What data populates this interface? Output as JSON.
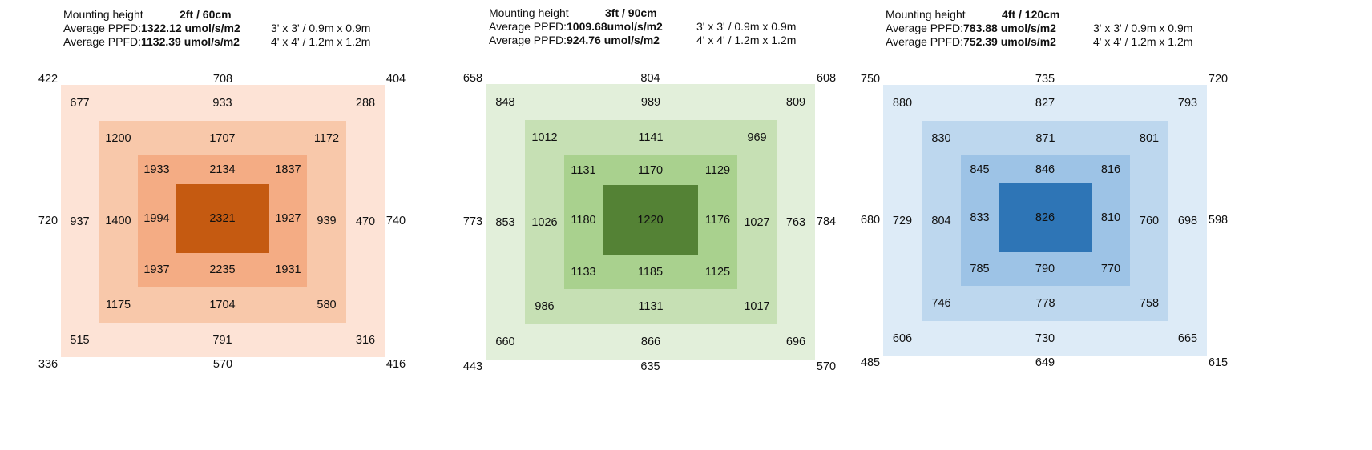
{
  "panels": [
    {
      "mounting_label": "Mounting height",
      "height": "2ft / 60cm",
      "ppfd_label": "Average PPFD:",
      "ppfd_3": "1322.12 umol/s/m2",
      "size_3": "3' x 3' / 0.9m x 0.9m",
      "ppfd_4": "1132.39 umol/s/m2",
      "size_4": "4' x 4' / 1.2m x 1.2m",
      "colors": [
        "#fde3d6",
        "#f8c8aa",
        "#f4ac84",
        "#c55a11"
      ],
      "rings": [
        [
          "422",
          "708",
          "404",
          "720",
          "740",
          "336",
          "570",
          "416"
        ],
        [
          "677",
          "933",
          "288",
          "937",
          "470",
          "515",
          "791",
          "316"
        ],
        [
          "1200",
          "1707",
          "1172",
          "1400",
          "939",
          "1175",
          "1704",
          "580"
        ],
        [
          "1933",
          "2134",
          "1837",
          "1994",
          "1927",
          "1937",
          "2235",
          "1931"
        ]
      ],
      "center": "2321"
    },
    {
      "mounting_label": "Mounting height",
      "height": "3ft / 90cm",
      "ppfd_label": "Average PPFD:",
      "ppfd_3": "1009.68umol/s/m2",
      "size_3": "3' x 3' / 0.9m x 0.9m",
      "ppfd_4": "924.76 umol/s/m2",
      "size_4": "4' x 4' / 1.2m x 1.2m",
      "colors": [
        "#e2efda",
        "#c6e0b4",
        "#a9d18e",
        "#548235"
      ],
      "rings": [
        [
          "658",
          "804",
          "608",
          "773",
          "784",
          "443",
          "635",
          "570"
        ],
        [
          "848",
          "989",
          "809",
          "853",
          "763",
          "660",
          "866",
          "696"
        ],
        [
          "1012",
          "1141",
          "969",
          "1026",
          "1027",
          "986",
          "1131",
          "1017"
        ],
        [
          "1131",
          "1170",
          "1129",
          "1180",
          "1176",
          "1133",
          "1185",
          "1125"
        ]
      ],
      "center": "1220"
    },
    {
      "mounting_label": "Mounting height",
      "height": "4ft / 120cm",
      "ppfd_label": "Average PPFD:",
      "ppfd_3": "783.88 umol/s/m2",
      "size_3": "3' x 3' / 0.9m x 0.9m",
      "ppfd_4": "752.39 umol/s/m2",
      "size_4": "4' x 4' / 1.2m x 1.2m",
      "colors": [
        "#ddebf7",
        "#bdd7ee",
        "#9dc3e6",
        "#2e75b6"
      ],
      "rings": [
        [
          "750",
          "735",
          "720",
          "680",
          "598",
          "485",
          "649",
          "615"
        ],
        [
          "880",
          "827",
          "793",
          "729",
          "698",
          "606",
          "730",
          "665"
        ],
        [
          "830",
          "871",
          "801",
          "804",
          "760",
          "746",
          "778",
          "758"
        ],
        [
          "845",
          "846",
          "816",
          "833",
          "810",
          "785",
          "790",
          "770"
        ]
      ],
      "center": "826"
    }
  ]
}
